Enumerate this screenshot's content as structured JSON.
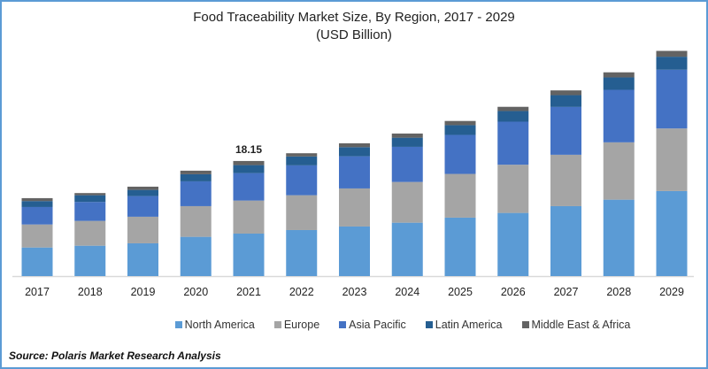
{
  "chart_data": {
    "type": "bar",
    "stacked": true,
    "title": "Food Traceability Market Size, By Region, 2017 - 2029",
    "subtitle": "(USD Billion)",
    "categories": [
      "2017",
      "2018",
      "2019",
      "2020",
      "2021",
      "2022",
      "2023",
      "2024",
      "2025",
      "2026",
      "2027",
      "2028",
      "2029"
    ],
    "series": [
      {
        "name": "North America",
        "color": "#5b9bd5",
        "values": [
          4.51,
          4.79,
          5.17,
          6.19,
          6.7,
          7.26,
          7.82,
          8.42,
          9.22,
          9.96,
          11.03,
          12.05,
          13.41
        ]
      },
      {
        "name": "Europe",
        "color": "#a5a5a5",
        "values": [
          3.63,
          3.91,
          4.19,
          4.84,
          5.21,
          5.49,
          6.0,
          6.42,
          6.89,
          7.6,
          8.1,
          9.04,
          9.87
        ]
      },
      {
        "name": "Asia Pacific",
        "color": "#4472c4",
        "values": [
          2.75,
          2.99,
          3.25,
          3.91,
          4.33,
          4.71,
          5.07,
          5.54,
          6.15,
          6.79,
          7.54,
          8.28,
          9.26
        ]
      },
      {
        "name": "Latin America",
        "color": "#255e91",
        "values": [
          0.94,
          1.06,
          0.98,
          1.12,
          1.26,
          1.4,
          1.44,
          1.44,
          1.54,
          1.68,
          1.86,
          1.96,
          2.05
        ]
      },
      {
        "name": "Middle East & Africa",
        "color": "#636363",
        "values": [
          0.46,
          0.34,
          0.51,
          0.56,
          0.65,
          0.51,
          0.61,
          0.66,
          0.66,
          0.66,
          0.75,
          0.8,
          0.92
        ]
      }
    ],
    "annotations": [
      {
        "category": "2021",
        "text": "18.15"
      }
    ],
    "ylim": [
      0,
      36
    ],
    "grid": false,
    "y_axis_visible": false,
    "legend_position": "bottom"
  },
  "source": "Source: Polaris  Market Research Analysis"
}
